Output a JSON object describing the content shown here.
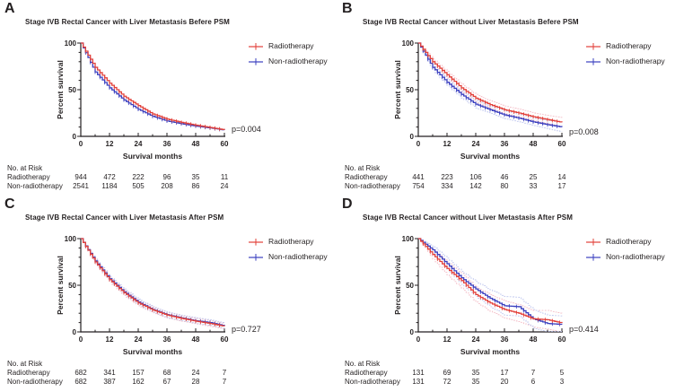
{
  "figure_background": "#ffffff",
  "colors": {
    "radiotherapy": "#e2403a",
    "non_radiotherapy": "#3a3fbf",
    "radiotherapy_ci": "#f3bcc6",
    "non_radiotherapy_ci": "#bdc5ee",
    "axis": "#231f20",
    "text": "#231f20"
  },
  "chart_data": [
    {
      "type": "line",
      "subtype": "kaplan-meier-survival",
      "letter": "A",
      "title": "Stage IVB Rectal Cancer with Liver Metastasis Befere PSM",
      "xlabel": "Survival months",
      "ylabel": "Percent survival",
      "xlim": [
        0,
        60
      ],
      "ylim": [
        0,
        100
      ],
      "xticks": [
        0,
        12,
        24,
        36,
        48,
        60
      ],
      "yticks": [
        0,
        50,
        100
      ],
      "p_value": "p=0.004",
      "x": [
        0,
        6,
        12,
        18,
        24,
        30,
        36,
        42,
        48,
        54,
        60
      ],
      "series": [
        {
          "name": "Radiotherapy",
          "color_key": "radiotherapy",
          "ci_color_key": "radiotherapy_ci",
          "values": [
            100,
            74,
            57,
            43,
            33,
            24,
            18.5,
            15,
            12,
            9.5,
            7
          ],
          "ci_width": [
            0,
            0,
            0,
            0,
            0,
            0,
            0,
            0,
            0,
            0,
            0
          ]
        },
        {
          "name": "Non-radiotherapy",
          "color_key": "non_radiotherapy",
          "ci_color_key": "non_radiotherapy_ci",
          "values": [
            100,
            69,
            52,
            39,
            29,
            21.5,
            16.5,
            13.5,
            11,
            9,
            6.8
          ],
          "ci_width": [
            0,
            0,
            0,
            0,
            0,
            0,
            0,
            0,
            0,
            0,
            0
          ]
        }
      ],
      "risk_table": {
        "header": "No. at Risk",
        "timepoints": [
          0,
          12,
          24,
          36,
          48,
          60
        ],
        "rows": [
          {
            "label": "Radiotherapy",
            "counts": [
              944,
              472,
              222,
              96,
              35,
              11
            ]
          },
          {
            "label": "Non-radiotherapy",
            "counts": [
              2541,
              1184,
              505,
              208,
              86,
              24
            ]
          }
        ]
      }
    },
    {
      "type": "line",
      "subtype": "kaplan-meier-survival",
      "letter": "B",
      "title": "Stage IVB Rectal Cancer without Liver Metastasis Befere PSM",
      "xlabel": "Survival months",
      "ylabel": "Percent survival",
      "xlim": [
        0,
        60
      ],
      "ylim": [
        0,
        100
      ],
      "xticks": [
        0,
        12,
        24,
        36,
        48,
        60
      ],
      "yticks": [
        0,
        50,
        100
      ],
      "p_value": "p=0.008",
      "x": [
        0,
        6,
        12,
        18,
        24,
        30,
        36,
        42,
        48,
        54,
        60
      ],
      "series": [
        {
          "name": "Radiotherapy",
          "color_key": "radiotherapy",
          "ci_color_key": "radiotherapy_ci",
          "values": [
            100,
            80,
            66,
            52,
            41,
            34,
            28.5,
            25,
            21,
            18,
            15
          ],
          "ci_width": [
            0,
            3,
            3.5,
            4,
            4,
            4,
            4,
            4,
            4,
            4.5,
            5
          ]
        },
        {
          "name": "Non-radiotherapy",
          "color_key": "non_radiotherapy",
          "ci_color_key": "non_radiotherapy_ci",
          "values": [
            100,
            74,
            58,
            45,
            34.5,
            28.5,
            23,
            19.5,
            15.5,
            12.5,
            10
          ],
          "ci_width": [
            0,
            3,
            3.5,
            4,
            4,
            4,
            4,
            4,
            4,
            4.5,
            5
          ]
        }
      ],
      "risk_table": {
        "header": "No. at Risk",
        "timepoints": [
          0,
          12,
          24,
          36,
          48,
          60
        ],
        "rows": [
          {
            "label": "Radiotherapy",
            "counts": [
              441,
              223,
              106,
              46,
              25,
              14
            ]
          },
          {
            "label": "Non-radiotherapy",
            "counts": [
              754,
              334,
              142,
              80,
              33,
              17
            ]
          }
        ]
      }
    },
    {
      "type": "line",
      "subtype": "kaplan-meier-survival",
      "letter": "C",
      "title": "Stage IVB Rectal Cancer with Liver Metastasis After PSM",
      "xlabel": "Survival months",
      "ylabel": "Percent survival",
      "xlim": [
        0,
        60
      ],
      "ylim": [
        0,
        100
      ],
      "xticks": [
        0,
        12,
        24,
        36,
        48,
        60
      ],
      "yticks": [
        0,
        50,
        100
      ],
      "p_value": "p=0.727",
      "x": [
        0,
        6,
        12,
        18,
        24,
        30,
        36,
        42,
        48,
        54,
        60
      ],
      "series": [
        {
          "name": "Radiotherapy",
          "color_key": "radiotherapy",
          "ci_color_key": "radiotherapy_ci",
          "values": [
            100,
            75,
            56,
            42,
            31,
            23.5,
            18,
            14.5,
            11.5,
            9,
            6
          ],
          "ci_width": [
            0,
            2,
            2.5,
            3,
            3,
            3,
            3,
            3,
            3,
            3,
            3
          ]
        },
        {
          "name": "Non-radiotherapy",
          "color_key": "non_radiotherapy",
          "ci_color_key": "non_radiotherapy_ci",
          "values": [
            100,
            76,
            57,
            43,
            32,
            24,
            18.5,
            15,
            12,
            10,
            6.5
          ],
          "ci_width": [
            0,
            2,
            2.5,
            3,
            3,
            3,
            3,
            3,
            3,
            3,
            3
          ]
        }
      ],
      "risk_table": {
        "header": "No. at Risk",
        "timepoints": [
          0,
          12,
          24,
          36,
          48,
          60
        ],
        "rows": [
          {
            "label": "Radiotherapy",
            "counts": [
              682,
              341,
              157,
              68,
              24,
              7
            ]
          },
          {
            "label": "Non-radiotherapy",
            "counts": [
              682,
              387,
              162,
              67,
              28,
              7
            ]
          }
        ]
      }
    },
    {
      "type": "line",
      "subtype": "kaplan-meier-survival",
      "letter": "D",
      "title": "Stage IVB Rectal Cancer without Liver Metastasis After PSM",
      "xlabel": "Survival months",
      "ylabel": "Percent survival",
      "xlim": [
        0,
        60
      ],
      "ylim": [
        0,
        100
      ],
      "xticks": [
        0,
        12,
        24,
        36,
        48,
        60
      ],
      "yticks": [
        0,
        50,
        100
      ],
      "p_value": "p=0.414",
      "x": [
        0,
        6,
        12,
        18,
        24,
        30,
        36,
        42,
        48,
        54,
        60
      ],
      "series": [
        {
          "name": "Radiotherapy",
          "color_key": "radiotherapy",
          "ci_color_key": "radiotherapy_ci",
          "values": [
            100,
            83,
            68,
            55,
            40,
            31,
            24,
            20,
            14,
            13,
            9.5
          ],
          "ci_width": [
            0,
            5,
            7,
            8,
            8,
            9,
            9,
            9,
            9,
            10,
            10
          ]
        },
        {
          "name": "Non-radiotherapy",
          "color_key": "non_radiotherapy",
          "ci_color_key": "non_radiotherapy_ci",
          "values": [
            100,
            88,
            73,
            58,
            46,
            36,
            28,
            27,
            14,
            9,
            8
          ],
          "ci_width": [
            0,
            4,
            6,
            7,
            8,
            9,
            10,
            10,
            10,
            9,
            9
          ]
        }
      ],
      "risk_table": {
        "header": "No. at Risk",
        "timepoints": [
          0,
          12,
          24,
          36,
          48,
          60
        ],
        "rows": [
          {
            "label": "Radiotherapy",
            "counts": [
              131,
              69,
              35,
              17,
              7,
              5
            ]
          },
          {
            "label": "Non-radiotherapy",
            "counts": [
              131,
              72,
              35,
              20,
              6,
              3
            ]
          }
        ]
      }
    }
  ]
}
